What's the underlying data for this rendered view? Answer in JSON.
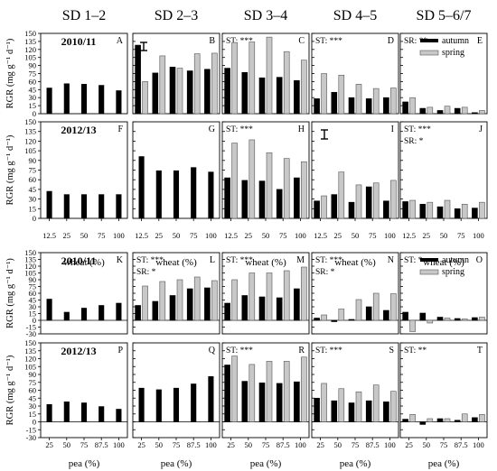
{
  "col_titles": [
    "SD 1–2",
    "SD 2–3",
    "SD 3–4",
    "SD 4–5",
    "SD 5–6/7"
  ],
  "ylabel": "RGR (mg g⁻¹ d⁻¹)",
  "legend": {
    "autumn": "autumn",
    "spring": "spring"
  },
  "colors": {
    "autumn": "#000000",
    "spring": "#c8c8c8",
    "spring_stroke": "#555555"
  },
  "chart_data": [
    {
      "type": "bar",
      "block": "wheat",
      "categories": [
        "12.5",
        "25",
        "50",
        "75",
        "100"
      ],
      "xlabel": "wheat (%)",
      "ylim": [
        0,
        150
      ],
      "yticks": [
        0,
        15,
        30,
        45,
        60,
        75,
        90,
        105,
        120,
        135,
        150
      ],
      "rows": [
        {
          "year": "2010/11",
          "panels": [
            {
              "letter": "A",
              "notes": [],
              "series": [
                {
                  "name": "autumn",
                  "values": [
                    48,
                    56,
                    55,
                    53,
                    43
                  ]
                }
              ]
            },
            {
              "letter": "B",
              "notes": [],
              "series": [
                {
                  "name": "autumn",
                  "values": [
                    128,
                    76,
                    87,
                    80,
                    83
                  ]
                },
                {
                  "name": "spring",
                  "values": [
                    60,
                    108,
                    85,
                    112,
                    113
                  ]
                }
              ]
            },
            {
              "letter": "C",
              "notes": [
                "ST: ***"
              ],
              "series": [
                {
                  "name": "autumn",
                  "values": [
                    85,
                    77,
                    67,
                    68,
                    62
                  ]
                },
                {
                  "name": "spring",
                  "values": [
                    133,
                    134,
                    143,
                    116,
                    100
                  ]
                }
              ]
            },
            {
              "letter": "D",
              "notes": [
                "ST: ***"
              ],
              "series": [
                {
                  "name": "autumn",
                  "values": [
                    28,
                    40,
                    30,
                    28,
                    30
                  ]
                },
                {
                  "name": "spring",
                  "values": [
                    75,
                    72,
                    55,
                    47,
                    48
                  ]
                }
              ]
            },
            {
              "letter": "E",
              "notes": [
                "SR: **"
              ],
              "legend": true,
              "series": [
                {
                  "name": "autumn",
                  "values": [
                    22,
                    10,
                    6,
                    10,
                    2
                  ]
                },
                {
                  "name": "spring",
                  "values": [
                    30,
                    12,
                    14,
                    12,
                    6
                  ]
                }
              ]
            }
          ]
        },
        {
          "year": "2012/13",
          "panels": [
            {
              "letter": "F",
              "notes": [],
              "series": [
                {
                  "name": "autumn",
                  "values": [
                    42,
                    37,
                    37,
                    37,
                    37
                  ]
                }
              ]
            },
            {
              "letter": "G",
              "notes": [],
              "series": [
                {
                  "name": "autumn",
                  "values": [
                    96,
                    74,
                    74,
                    79,
                    72
                  ]
                }
              ]
            },
            {
              "letter": "H",
              "notes": [
                "ST: ***"
              ],
              "series": [
                {
                  "name": "autumn",
                  "values": [
                    63,
                    59,
                    58,
                    45,
                    63
                  ]
                },
                {
                  "name": "spring",
                  "values": [
                    117,
                    122,
                    102,
                    93,
                    88
                  ]
                }
              ]
            },
            {
              "letter": "I",
              "notes": [],
              "series": [
                {
                  "name": "autumn",
                  "values": [
                    27,
                    37,
                    25,
                    49,
                    27
                  ]
                },
                {
                  "name": "spring",
                  "values": [
                    35,
                    72,
                    52,
                    55,
                    59
                  ]
                }
              ]
            },
            {
              "letter": "J",
              "notes": [
                "ST: ***",
                "SR: *"
              ],
              "series": [
                {
                  "name": "autumn",
                  "values": [
                    26,
                    22,
                    18,
                    15,
                    16
                  ]
                },
                {
                  "name": "spring",
                  "values": [
                    28,
                    25,
                    28,
                    22,
                    25
                  ]
                }
              ]
            }
          ]
        }
      ]
    },
    {
      "type": "bar",
      "block": "pea",
      "categories": [
        "25",
        "50",
        "75",
        "87.5",
        "100"
      ],
      "xlabel": "pea (%)",
      "ylim": [
        -30,
        150
      ],
      "yticks": [
        -30,
        -15,
        0,
        15,
        30,
        45,
        60,
        75,
        90,
        105,
        120,
        135,
        150
      ],
      "rows": [
        {
          "year": "2010/11",
          "panels": [
            {
              "letter": "K",
              "notes": [],
              "series": [
                {
                  "name": "autumn",
                  "values": [
                    47,
                    18,
                    27,
                    33,
                    38
                  ]
                }
              ]
            },
            {
              "letter": "L",
              "notes": [
                "ST: ***",
                "SR: *"
              ],
              "series": [
                {
                  "name": "autumn",
                  "values": [
                    33,
                    42,
                    55,
                    70,
                    72
                  ]
                },
                {
                  "name": "spring",
                  "values": [
                    76,
                    86,
                    90,
                    96,
                    88
                  ]
                }
              ]
            },
            {
              "letter": "M",
              "notes": [
                "ST: ***"
              ],
              "series": [
                {
                  "name": "autumn",
                  "values": [
                    38,
                    55,
                    52,
                    50,
                    70
                  ]
                },
                {
                  "name": "spring",
                  "values": [
                    90,
                    105,
                    105,
                    110,
                    118
                  ]
                }
              ]
            },
            {
              "letter": "N",
              "notes": [
                "ST: ***",
                "SR: *"
              ],
              "series": [
                {
                  "name": "autumn",
                  "values": [
                    5,
                    -3,
                    2,
                    30,
                    22
                  ]
                },
                {
                  "name": "spring",
                  "values": [
                    12,
                    25,
                    46,
                    60,
                    59
                  ]
                }
              ]
            },
            {
              "letter": "O",
              "notes": [
                "ST: *"
              ],
              "legend": true,
              "series": [
                {
                  "name": "autumn",
                  "values": [
                    18,
                    16,
                    7,
                    4,
                    6
                  ]
                },
                {
                  "name": "spring",
                  "values": [
                    -25,
                    -6,
                    5,
                    3,
                    7
                  ]
                }
              ]
            }
          ]
        },
        {
          "year": "2012/13",
          "panels": [
            {
              "letter": "P",
              "notes": [],
              "series": [
                {
                  "name": "autumn",
                  "values": [
                    33,
                    38,
                    36,
                    29,
                    24
                  ]
                }
              ]
            },
            {
              "letter": "Q",
              "notes": [],
              "series": [
                {
                  "name": "autumn",
                  "values": [
                    64,
                    61,
                    64,
                    72,
                    86
                  ]
                }
              ]
            },
            {
              "letter": "R",
              "notes": [
                "ST: ***"
              ],
              "series": [
                {
                  "name": "autumn",
                  "values": [
                    108,
                    77,
                    74,
                    73,
                    76
                  ]
                },
                {
                  "name": "spring",
                  "values": [
                    125,
                    109,
                    115,
                    115,
                    123
                  ]
                }
              ]
            },
            {
              "letter": "S",
              "notes": [
                "ST: ***"
              ],
              "series": [
                {
                  "name": "autumn",
                  "values": [
                    45,
                    40,
                    36,
                    40,
                    38
                  ]
                },
                {
                  "name": "spring",
                  "values": [
                    73,
                    63,
                    57,
                    70,
                    58
                  ]
                }
              ]
            },
            {
              "letter": "T",
              "notes": [
                "ST: **"
              ],
              "series": [
                {
                  "name": "autumn",
                  "values": [
                    5,
                    -5,
                    6,
                    3,
                    8
                  ]
                },
                {
                  "name": "spring",
                  "values": [
                    14,
                    6,
                    6,
                    15,
                    14
                  ]
                }
              ]
            }
          ]
        }
      ]
    }
  ]
}
